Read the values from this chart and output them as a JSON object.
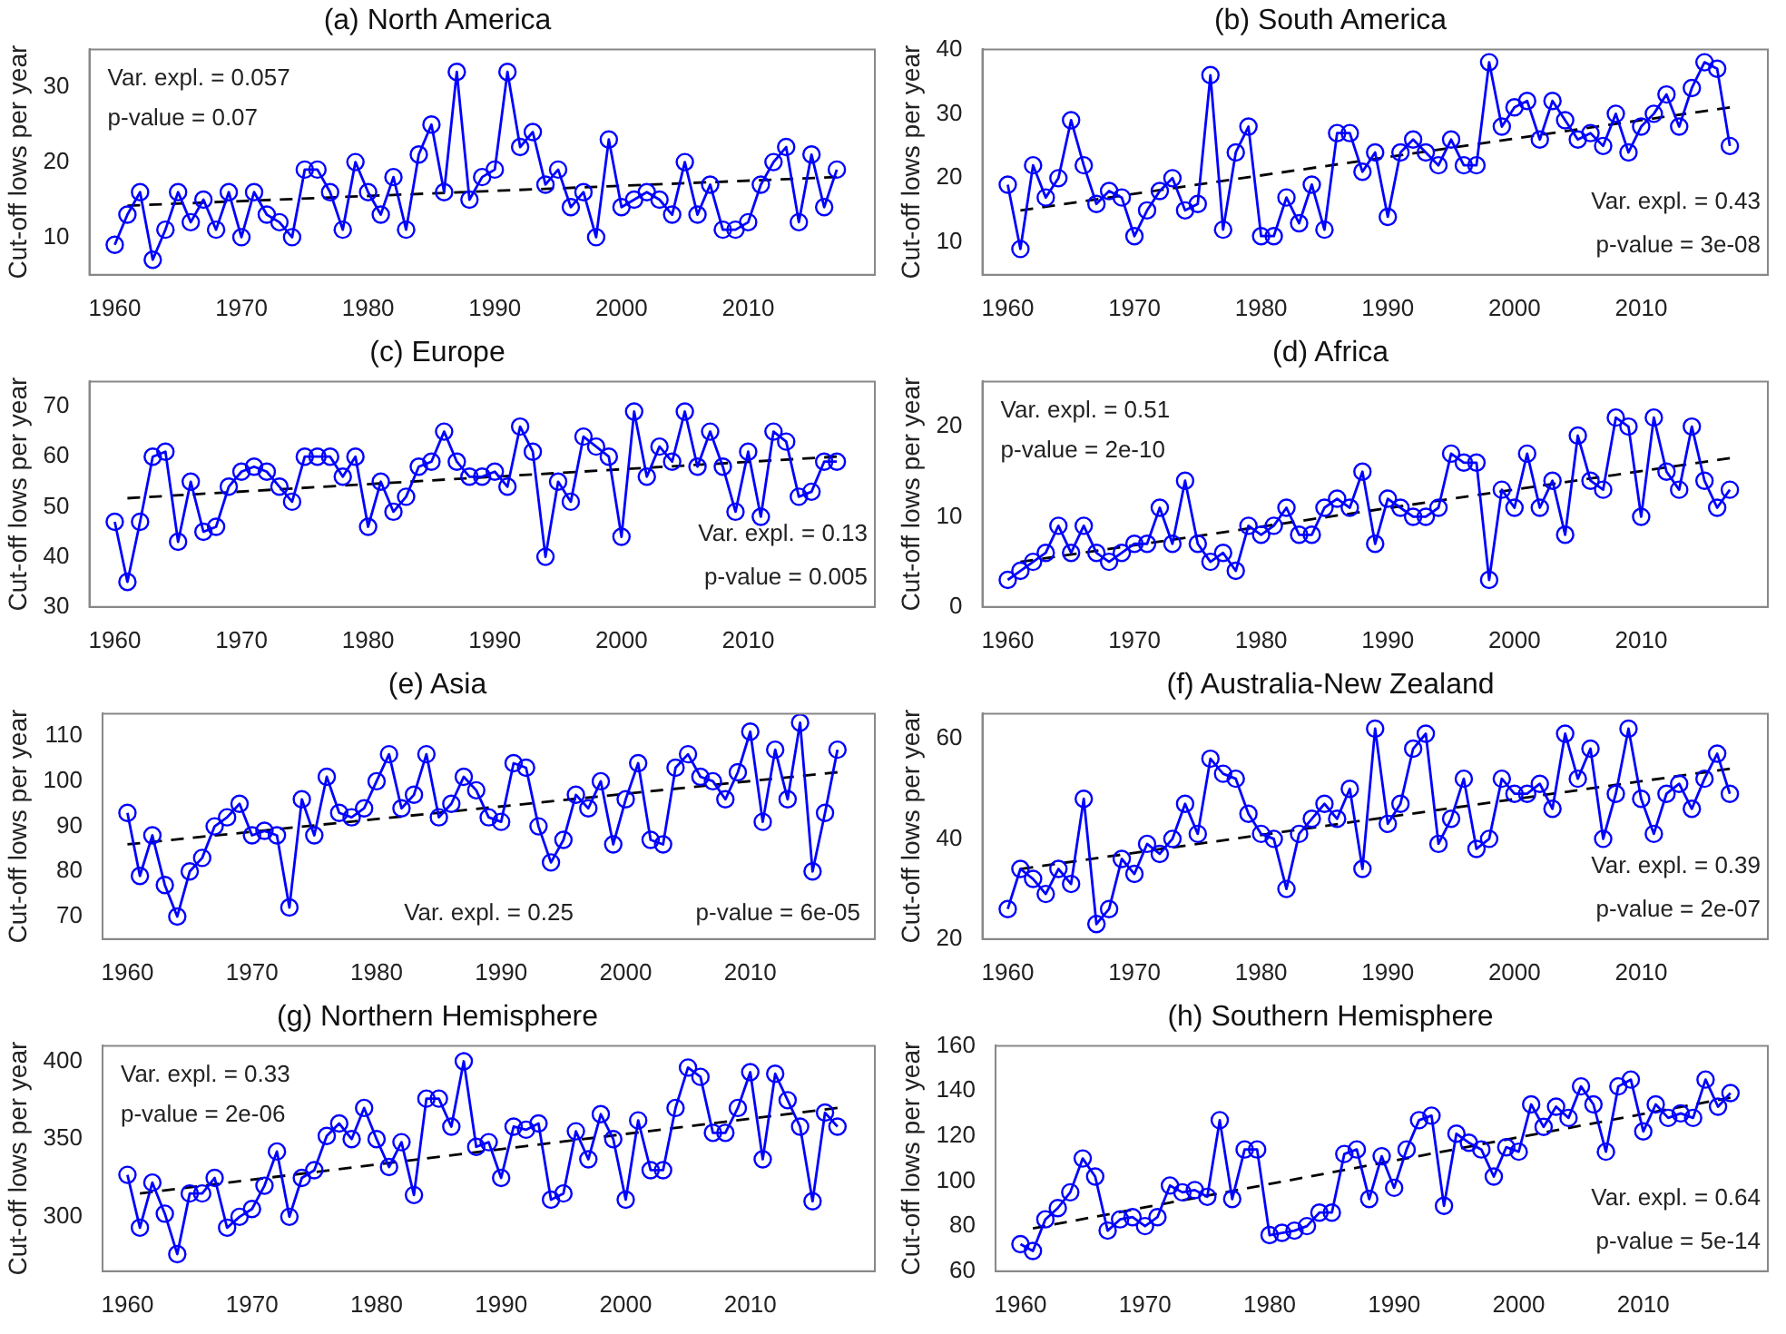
{
  "chart_data": [
    {
      "type": "line",
      "title": "(a) North America",
      "ylabel": "Cut-off lows per year",
      "x": [
        1960,
        1961,
        1962,
        1963,
        1964,
        1965,
        1966,
        1967,
        1968,
        1969,
        1970,
        1971,
        1972,
        1973,
        1974,
        1975,
        1976,
        1977,
        1978,
        1979,
        1980,
        1981,
        1982,
        1983,
        1984,
        1985,
        1986,
        1987,
        1988,
        1989,
        1990,
        1991,
        1992,
        1993,
        1994,
        1995,
        1996,
        1997,
        1998,
        1999,
        2000,
        2001,
        2002,
        2003,
        2004,
        2005,
        2006,
        2007,
        2008,
        2009,
        2010,
        2011,
        2012,
        2013,
        2014,
        2015,
        2016,
        2017
      ],
      "xlim": [
        1958,
        2020
      ],
      "xticks": [
        1960,
        1970,
        1980,
        1990,
        2000,
        2010
      ],
      "ylim": [
        5,
        35
      ],
      "yticks": [
        10,
        20,
        30
      ],
      "marker": "circle",
      "annotations": [
        "Var. expl. = 0.057",
        "p-value = 0.07"
      ],
      "series": [
        {
          "color": "#0000ff",
          "values": [
            9,
            13,
            16,
            7,
            11,
            16,
            12,
            15,
            11,
            16,
            10,
            16,
            13,
            12,
            10,
            19,
            19,
            16,
            11,
            20,
            16,
            13,
            18,
            11,
            21,
            25,
            16,
            32,
            15,
            18,
            19,
            32,
            22,
            24,
            17,
            19,
            14,
            16,
            10,
            23,
            14,
            15,
            16,
            15,
            13,
            20,
            13,
            17,
            11,
            11,
            12,
            17,
            20,
            22,
            12,
            21,
            14,
            19
          ]
        },
        {
          "type": "line",
          "x": [
            1961,
            2017
          ],
          "values": [
            14.2,
            18
          ],
          "color": "#000000",
          "line_style": "dashed",
          "marker": "none"
        }
      ]
    },
    {
      "type": "line",
      "title": "(b) South America",
      "ylabel": "Cut-off lows per year",
      "x": [
        1960,
        1961,
        1962,
        1963,
        1964,
        1965,
        1966,
        1967,
        1968,
        1969,
        1970,
        1971,
        1972,
        1973,
        1974,
        1975,
        1976,
        1977,
        1978,
        1979,
        1980,
        1981,
        1982,
        1983,
        1984,
        1985,
        1986,
        1987,
        1988,
        1989,
        1990,
        1991,
        1992,
        1993,
        1994,
        1995,
        1996,
        1997,
        1998,
        1999,
        2000,
        2001,
        2002,
        2003,
        2004,
        2005,
        2006,
        2007,
        2008,
        2009,
        2010,
        2011,
        2012,
        2013,
        2014,
        2015,
        2016,
        2017
      ],
      "xlim": [
        1958,
        2020
      ],
      "xticks": [
        1960,
        1970,
        1980,
        1990,
        2000,
        2010
      ],
      "ylim": [
        5,
        40
      ],
      "yticks": [
        10,
        20,
        30,
        40
      ],
      "marker": "circle",
      "annotations": [
        "Var. expl. = 0.43",
        "p-value = 3e-08"
      ],
      "series": [
        {
          "color": "#0000ff",
          "values": [
            19,
            9,
            22,
            17,
            20,
            29,
            22,
            16,
            18,
            17,
            11,
            15,
            18,
            20,
            15,
            16,
            36,
            12,
            24,
            28,
            11,
            11,
            17,
            13,
            19,
            12,
            27,
            27,
            21,
            24,
            14,
            24,
            26,
            24,
            22,
            26,
            22,
            22,
            38,
            28,
            31,
            32,
            26,
            32,
            29,
            26,
            27,
            25,
            30,
            24,
            28,
            30,
            33,
            28,
            34,
            38,
            37,
            25
          ]
        },
        {
          "type": "line",
          "x": [
            1961,
            2017
          ],
          "values": [
            15,
            31
          ],
          "color": "#000000",
          "line_style": "dashed",
          "marker": "none"
        }
      ]
    },
    {
      "type": "line",
      "title": "(c) Europe",
      "ylabel": "Cut-off lows per year",
      "x": [
        1960,
        1961,
        1962,
        1963,
        1964,
        1965,
        1966,
        1967,
        1968,
        1969,
        1970,
        1971,
        1972,
        1973,
        1974,
        1975,
        1976,
        1977,
        1978,
        1979,
        1980,
        1981,
        1982,
        1983,
        1984,
        1985,
        1986,
        1987,
        1988,
        1989,
        1990,
        1991,
        1992,
        1993,
        1994,
        1995,
        1996,
        1997,
        1998,
        1999,
        2000,
        2001,
        2002,
        2003,
        2004,
        2005,
        2006,
        2007,
        2008,
        2009,
        2010,
        2011,
        2012,
        2013,
        2014,
        2015,
        2016,
        2017
      ],
      "xlim": [
        1958,
        2020
      ],
      "xticks": [
        1960,
        1970,
        1980,
        1990,
        2000,
        2010
      ],
      "ylim": [
        30,
        75
      ],
      "yticks": [
        30,
        40,
        50,
        60,
        70
      ],
      "marker": "circle",
      "annotations": [
        "Var. expl. = 0.13",
        "p-value = 0.005"
      ],
      "series": [
        {
          "color": "#0000ff",
          "values": [
            47,
            35,
            47,
            60,
            61,
            43,
            55,
            45,
            46,
            54,
            57,
            58,
            57,
            54,
            51,
            60,
            60,
            60,
            56,
            60,
            46,
            55,
            49,
            52,
            58,
            59,
            65,
            59,
            56,
            56,
            57,
            54,
            66,
            61,
            40,
            55,
            51,
            64,
            62,
            60,
            44,
            69,
            56,
            62,
            59,
            69,
            58,
            65,
            58,
            49,
            61,
            48,
            65,
            63,
            52,
            53,
            59,
            59
          ]
        },
        {
          "type": "line",
          "x": [
            1961,
            2017
          ],
          "values": [
            51.7,
            60
          ],
          "color": "#000000",
          "line_style": "dashed",
          "marker": "none"
        }
      ]
    },
    {
      "type": "line",
      "title": "(d) Africa",
      "ylabel": "Cut-off lows per year",
      "x": [
        1960,
        1961,
        1962,
        1963,
        1964,
        1965,
        1966,
        1967,
        1968,
        1969,
        1970,
        1971,
        1972,
        1973,
        1974,
        1975,
        1976,
        1977,
        1978,
        1979,
        1980,
        1981,
        1982,
        1983,
        1984,
        1985,
        1986,
        1987,
        1988,
        1989,
        1990,
        1991,
        1992,
        1993,
        1994,
        1995,
        1996,
        1997,
        1998,
        1999,
        2000,
        2001,
        2002,
        2003,
        2004,
        2005,
        2006,
        2007,
        2008,
        2009,
        2010,
        2011,
        2012,
        2013,
        2014,
        2015,
        2016,
        2017
      ],
      "xlim": [
        1958,
        2020
      ],
      "xticks": [
        1960,
        1970,
        1980,
        1990,
        2000,
        2010
      ],
      "ylim": [
        0,
        25
      ],
      "yticks": [
        0,
        10,
        20
      ],
      "marker": "circle",
      "annotations": [
        "Var. expl. = 0.51",
        "p-value = 2e-10"
      ],
      "series": [
        {
          "color": "#0000ff",
          "values": [
            3,
            4,
            5,
            6,
            9,
            6,
            9,
            6,
            5,
            6,
            7,
            7,
            11,
            7,
            14,
            7,
            5,
            6,
            4,
            9,
            8,
            9,
            11,
            8,
            8,
            11,
            12,
            11,
            15,
            7,
            12,
            11,
            10,
            10,
            11,
            17,
            16,
            16,
            3,
            13,
            11,
            17,
            11,
            14,
            8,
            19,
            14,
            13,
            21,
            20,
            10,
            21,
            15,
            13,
            20,
            14,
            11,
            13
          ]
        },
        {
          "type": "line",
          "x": [
            1961,
            2017
          ],
          "values": [
            5,
            16.5
          ],
          "color": "#000000",
          "line_style": "dashed",
          "marker": "none"
        }
      ]
    },
    {
      "type": "line",
      "title": "(e) Asia",
      "ylabel": "Cut-off lows per year",
      "x": [
        1960,
        1961,
        1962,
        1963,
        1964,
        1965,
        1966,
        1967,
        1968,
        1969,
        1970,
        1971,
        1972,
        1973,
        1974,
        1975,
        1976,
        1977,
        1978,
        1979,
        1980,
        1981,
        1982,
        1983,
        1984,
        1985,
        1986,
        1987,
        1988,
        1989,
        1990,
        1991,
        1992,
        1993,
        1994,
        1995,
        1996,
        1997,
        1998,
        1999,
        2000,
        2001,
        2002,
        2003,
        2004,
        2005,
        2006,
        2007,
        2008,
        2009,
        2010,
        2011,
        2012,
        2013,
        2014,
        2015,
        2016,
        2017
      ],
      "xlim": [
        1958,
        2020
      ],
      "xticks": [
        1960,
        1970,
        1980,
        1990,
        2000,
        2010
      ],
      "ylim": [
        65,
        115
      ],
      "yticks": [
        70,
        80,
        90,
        100,
        110
      ],
      "marker": "circle",
      "annotations": [
        "Var. expl. = 0.25",
        "p-value = 6e-05"
      ],
      "series": [
        {
          "color": "#0000ff",
          "values": [
            93,
            79,
            88,
            77,
            70,
            80,
            83,
            90,
            92,
            95,
            88,
            89,
            88,
            72,
            96,
            88,
            101,
            93,
            92,
            94,
            100,
            106,
            94,
            97,
            106,
            92,
            95,
            101,
            98,
            92,
            91,
            104,
            103,
            90,
            82,
            87,
            97,
            94,
            100,
            86,
            96,
            104,
            87,
            86,
            103,
            106,
            101,
            100,
            96,
            102,
            111,
            91,
            107,
            96,
            113,
            80,
            93,
            107
          ]
        },
        {
          "type": "line",
          "x": [
            1960,
            2017
          ],
          "values": [
            86,
            102
          ],
          "color": "#000000",
          "line_style": "dashed",
          "marker": "none"
        }
      ]
    },
    {
      "type": "line",
      "title": "(f) Australia-New Zealand",
      "ylabel": "Cut-off lows per year",
      "x": [
        1960,
        1961,
        1962,
        1963,
        1964,
        1965,
        1966,
        1967,
        1968,
        1969,
        1970,
        1971,
        1972,
        1973,
        1974,
        1975,
        1976,
        1977,
        1978,
        1979,
        1980,
        1981,
        1982,
        1983,
        1984,
        1985,
        1986,
        1987,
        1988,
        1989,
        1990,
        1991,
        1992,
        1993,
        1994,
        1995,
        1996,
        1997,
        1998,
        1999,
        2000,
        2001,
        2002,
        2003,
        2004,
        2005,
        2006,
        2007,
        2008,
        2009,
        2010,
        2011,
        2012,
        2013,
        2014,
        2015,
        2016,
        2017
      ],
      "xlim": [
        1958,
        2020
      ],
      "xticks": [
        1960,
        1970,
        1980,
        1990,
        2000,
        2010
      ],
      "ylim": [
        20,
        65
      ],
      "yticks": [
        20,
        40,
        60
      ],
      "marker": "circle",
      "annotations": [
        "Var. expl. = 0.39",
        "p-value = 2e-07"
      ],
      "series": [
        {
          "color": "#0000ff",
          "values": [
            26,
            34,
            32,
            29,
            34,
            31,
            48,
            23,
            26,
            36,
            33,
            39,
            37,
            40,
            47,
            41,
            56,
            53,
            52,
            45,
            41,
            40,
            30,
            41,
            44,
            47,
            44,
            50,
            34,
            62,
            43,
            47,
            58,
            61,
            39,
            44,
            52,
            38,
            40,
            52,
            49,
            49,
            51,
            46,
            61,
            52,
            58,
            40,
            49,
            62,
            48,
            41,
            49,
            51,
            46,
            52,
            57,
            49
          ]
        },
        {
          "type": "line",
          "x": [
            1961,
            2017
          ],
          "values": [
            34,
            54
          ],
          "color": "#000000",
          "line_style": "dashed",
          "marker": "none"
        }
      ]
    },
    {
      "type": "line",
      "title": "(g) Northern Hemisphere",
      "ylabel": "Cut-off lows per year",
      "x": [
        1960,
        1961,
        1962,
        1963,
        1964,
        1965,
        1966,
        1967,
        1968,
        1969,
        1970,
        1971,
        1972,
        1973,
        1974,
        1975,
        1976,
        1977,
        1978,
        1979,
        1980,
        1981,
        1982,
        1983,
        1984,
        1985,
        1986,
        1987,
        1988,
        1989,
        1990,
        1991,
        1992,
        1993,
        1994,
        1995,
        1996,
        1997,
        1998,
        1999,
        2000,
        2001,
        2002,
        2003,
        2004,
        2005,
        2006,
        2007,
        2008,
        2009,
        2010,
        2011,
        2012,
        2013,
        2014,
        2015,
        2016,
        2017
      ],
      "xlim": [
        1958,
        2020
      ],
      "xticks": [
        1960,
        1970,
        1980,
        1990,
        2000,
        2010
      ],
      "ylim": [
        265,
        410
      ],
      "yticks": [
        300,
        350,
        400
      ],
      "marker": "circle",
      "annotations": [
        "Var. expl. = 0.33",
        "p-value = 2e-06"
      ],
      "series": [
        {
          "color": "#0000ff",
          "values": [
            327,
            293,
            322,
            302,
            276,
            315,
            315,
            325,
            293,
            300,
            305,
            320,
            342,
            300,
            325,
            330,
            352,
            360,
            350,
            370,
            350,
            332,
            348,
            314,
            376,
            376,
            358,
            400,
            345,
            348,
            325,
            358,
            356,
            360,
            311,
            315,
            355,
            337,
            366,
            350,
            311,
            362,
            330,
            330,
            370,
            396,
            390,
            354,
            354,
            370,
            393,
            337,
            392,
            375,
            358,
            310,
            367,
            358
          ]
        },
        {
          "type": "line",
          "x": [
            1961,
            2017
          ],
          "values": [
            315,
            370
          ],
          "color": "#000000",
          "line_style": "dashed",
          "marker": "none"
        }
      ]
    },
    {
      "type": "line",
      "title": "(h) Southern Hemisphere",
      "ylabel": "Cut-off lows per year",
      "x": [
        1960,
        1961,
        1962,
        1963,
        1964,
        1965,
        1966,
        1967,
        1968,
        1969,
        1970,
        1971,
        1972,
        1973,
        1974,
        1975,
        1976,
        1977,
        1978,
        1979,
        1980,
        1981,
        1982,
        1983,
        1984,
        1985,
        1986,
        1987,
        1988,
        1989,
        1990,
        1991,
        1992,
        1993,
        1994,
        1995,
        1996,
        1997,
        1998,
        1999,
        2000,
        2001,
        2002,
        2003,
        2004,
        2005,
        2006,
        2007,
        2008,
        2009,
        2010,
        2011,
        2012,
        2013,
        2014,
        2015,
        2016,
        2017
      ],
      "xlim": [
        1958,
        2020
      ],
      "xticks": [
        1960,
        1970,
        1980,
        1990,
        2000,
        2010
      ],
      "ylim": [
        60,
        160
      ],
      "yticks": [
        60,
        80,
        100,
        120,
        140,
        160
      ],
      "marker": "circle",
      "annotations": [
        "Var. expl. = 0.64",
        "p-value = 5e-14"
      ],
      "series": [
        {
          "color": "#0000ff",
          "values": [
            72,
            69,
            83,
            88,
            95,
            110,
            102,
            78,
            83,
            84,
            80,
            84,
            98,
            95,
            96,
            93,
            127,
            92,
            114,
            114,
            76,
            77,
            78,
            80,
            86,
            86,
            112,
            114,
            92,
            111,
            97,
            114,
            127,
            129,
            89,
            121,
            117,
            114,
            102,
            115,
            113,
            134,
            124,
            133,
            128,
            142,
            134,
            113,
            142,
            145,
            122,
            134,
            128,
            130,
            128,
            145,
            133,
            139
          ]
        },
        {
          "type": "line",
          "x": [
            1961,
            2017
          ],
          "values": [
            79,
            137
          ],
          "color": "#000000",
          "line_style": "dashed",
          "marker": "none"
        }
      ]
    }
  ]
}
